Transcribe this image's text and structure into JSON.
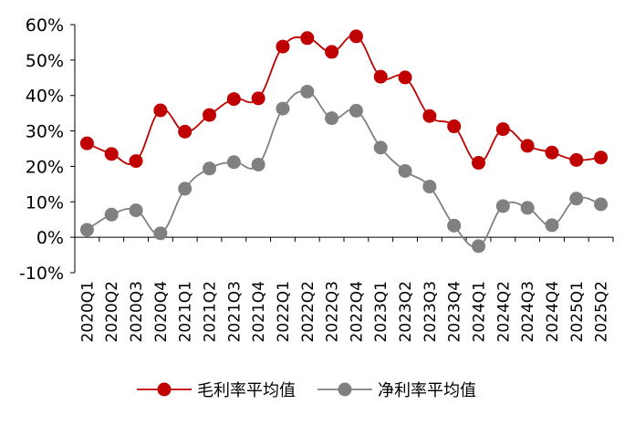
{
  "chart_data": {
    "type": "line",
    "categories": [
      "2020Q1",
      "2020Q2",
      "2020Q3",
      "2020Q4",
      "2021Q1",
      "2021Q2",
      "2021Q3",
      "2021Q4",
      "2022Q1",
      "2022Q2",
      "2022Q3",
      "2022Q4",
      "2023Q1",
      "2023Q2",
      "2023Q3",
      "2023Q4",
      "2024Q1",
      "2024Q2",
      "2024Q3",
      "2024Q4",
      "2025Q1",
      "2025Q2"
    ],
    "y_ticks": [
      "60%",
      "50%",
      "40%",
      "30%",
      "20%",
      "10%",
      "0%",
      "-10%"
    ],
    "ylim": [
      -10,
      60
    ],
    "grid": false,
    "legend_position": "bottom",
    "series": [
      {
        "name": "毛利率平均值",
        "color": "#c00000",
        "values": [
          26.5,
          23.5,
          21.5,
          35.8,
          29.8,
          34.5,
          39.0,
          39.2,
          53.8,
          56.2,
          52.3,
          56.7,
          45.3,
          45.1,
          34.2,
          31.3,
          21.0,
          30.5,
          25.8,
          23.9,
          21.8,
          22.5
        ]
      },
      {
        "name": "净利率平均值",
        "color": "#808080",
        "values": [
          2.1,
          6.4,
          7.6,
          1.1,
          13.7,
          19.4,
          21.2,
          20.5,
          36.3,
          41.1,
          33.6,
          35.7,
          25.3,
          18.7,
          14.3,
          3.3,
          -2.5,
          8.8,
          8.3,
          3.4,
          10.9,
          9.3
        ]
      }
    ]
  }
}
